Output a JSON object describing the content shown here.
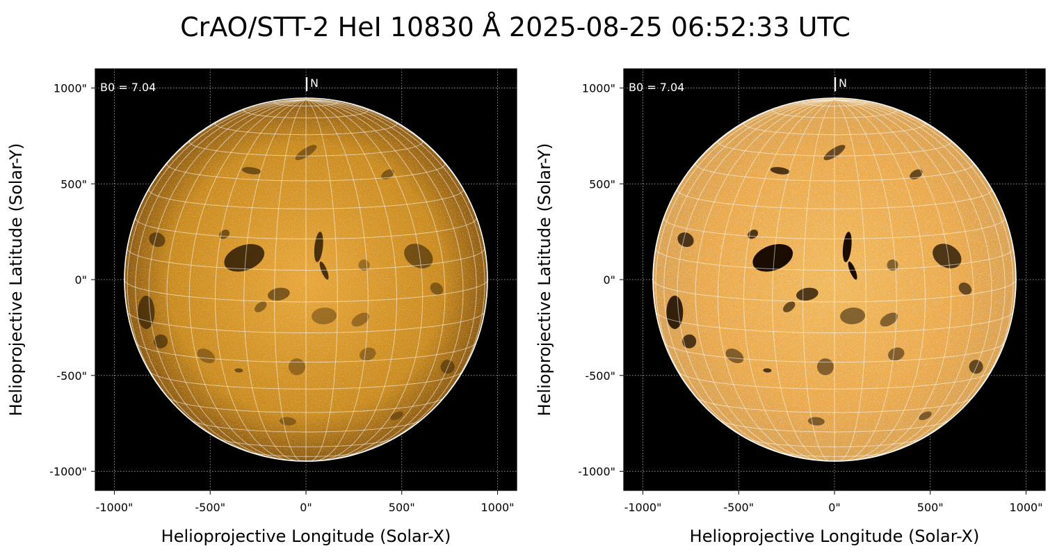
{
  "title": "CrAO/STT-2 HeI 10830 Å 2025-08-25 06:52:33 UTC",
  "colors": {
    "background": "#000000",
    "disk_base": "#c98a1e",
    "disk_bright": "#f4c870",
    "grid_white": "#ffffff",
    "filament_dark": "#1a0d00"
  },
  "axes": {
    "xlabel": "Helioprojective Longitude (Solar-X)",
    "ylabel": "Helioprojective Latitude (Solar-Y)",
    "xticks": [
      "-1000\"",
      "-500\"",
      "0\"",
      "500\"",
      "1000\""
    ],
    "yticks": [
      "1000\"",
      "500\"",
      "0\"",
      "-500\"",
      "-1000\""
    ]
  },
  "panels": [
    {
      "id": "left",
      "b0_label": "B0 = 7.04",
      "north_label": "N",
      "contrast": "normal"
    },
    {
      "id": "right",
      "b0_label": "B0 = 7.04",
      "north_label": "N",
      "contrast": "enhanced"
    }
  ]
}
